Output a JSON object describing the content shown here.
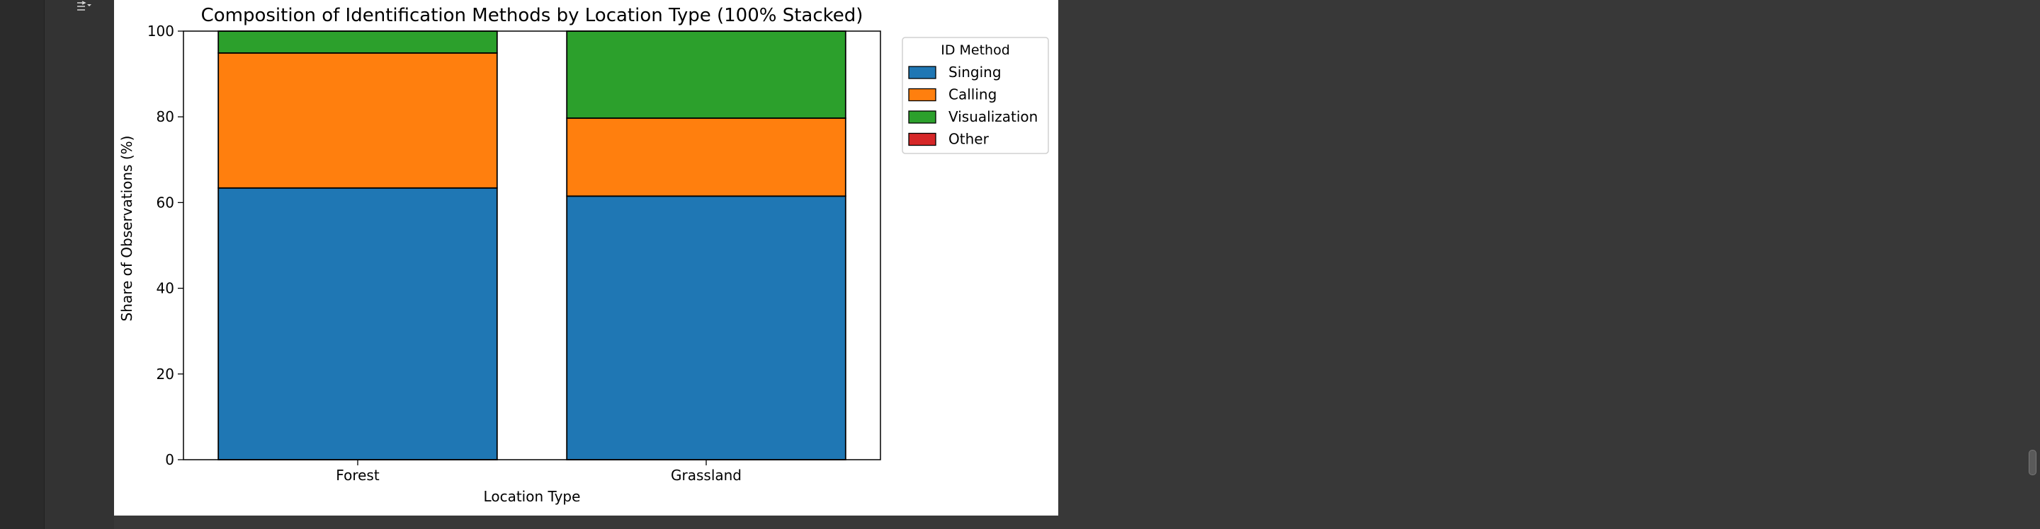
{
  "chart_data": {
    "type": "bar",
    "stacked": true,
    "title": "Composition of Identification Methods by Location Type (100% Stacked)",
    "xlabel": "Location Type",
    "ylabel": "Share of Observations (%)",
    "ylim": [
      0,
      100
    ],
    "yticks": [
      0,
      20,
      40,
      60,
      80,
      100
    ],
    "categories": [
      "Forest",
      "Grassland"
    ],
    "legend_title": "ID Method",
    "legend_position": "outside-right-top",
    "series": [
      {
        "name": "Singing",
        "color": "#1f77b4",
        "values": [
          63.4,
          61.5
        ]
      },
      {
        "name": "Calling",
        "color": "#ff7f0e",
        "values": [
          31.5,
          18.2
        ]
      },
      {
        "name": "Visualization",
        "color": "#2ca02c",
        "values": [
          5.1,
          20.3
        ]
      },
      {
        "name": "Other",
        "color": "#d62728",
        "values": [
          0,
          0
        ]
      }
    ]
  },
  "toolbar": {
    "icon": "output-toggle-icon"
  }
}
